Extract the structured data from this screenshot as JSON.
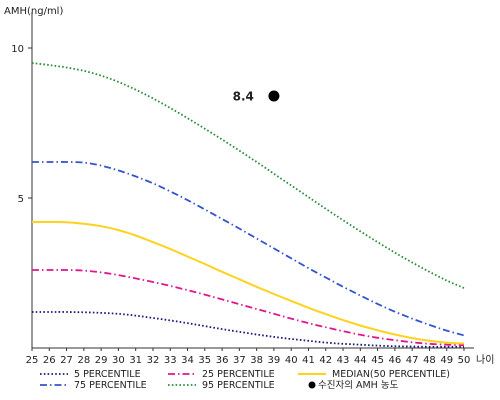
{
  "chart_data": {
    "type": "line",
    "ylabel": "AMH(ng/ml)",
    "xlabel": "나이",
    "x": [
      25,
      26,
      27,
      28,
      29,
      30,
      31,
      32,
      33,
      34,
      35,
      36,
      37,
      38,
      39,
      40,
      41,
      42,
      43,
      44,
      45,
      46,
      47,
      48,
      49,
      50
    ],
    "xlim": [
      25,
      50
    ],
    "ylim": [
      0,
      11
    ],
    "yticks": [
      5,
      10
    ],
    "series": [
      {
        "name": "5 PERCENTILE",
        "color": "#1a1a7a",
        "style": "dotted",
        "values": [
          1.2,
          1.2,
          1.2,
          1.19,
          1.17,
          1.14,
          1.08,
          1.0,
          0.92,
          0.83,
          0.73,
          0.63,
          0.54,
          0.45,
          0.37,
          0.3,
          0.24,
          0.18,
          0.14,
          0.11,
          0.08,
          0.06,
          0.05,
          0.04,
          0.04,
          0.04
        ]
      },
      {
        "name": "25 PERCENTILE",
        "color": "#e0168c",
        "style": "dash-dot",
        "values": [
          2.6,
          2.6,
          2.6,
          2.58,
          2.52,
          2.43,
          2.32,
          2.2,
          2.07,
          1.93,
          1.78,
          1.62,
          1.46,
          1.3,
          1.14,
          0.98,
          0.83,
          0.69,
          0.56,
          0.44,
          0.34,
          0.26,
          0.19,
          0.14,
          0.11,
          0.09
        ]
      },
      {
        "name": "MEDIAN(50 PERCENTILE)",
        "color": "#ffd21e",
        "style": "solid",
        "values": [
          4.2,
          4.2,
          4.19,
          4.14,
          4.06,
          3.93,
          3.75,
          3.53,
          3.3,
          3.05,
          2.8,
          2.54,
          2.29,
          2.04,
          1.8,
          1.57,
          1.34,
          1.13,
          0.93,
          0.75,
          0.59,
          0.45,
          0.33,
          0.24,
          0.18,
          0.15
        ]
      },
      {
        "name": "75 PERCENTILE",
        "color": "#3355cc",
        "style": "dash-dot",
        "values": [
          6.2,
          6.2,
          6.2,
          6.18,
          6.08,
          5.92,
          5.72,
          5.49,
          5.22,
          4.93,
          4.62,
          4.3,
          3.98,
          3.65,
          3.32,
          2.99,
          2.66,
          2.35,
          2.04,
          1.75,
          1.47,
          1.21,
          0.98,
          0.77,
          0.58,
          0.42
        ]
      },
      {
        "name": "95 PERCENTILE",
        "color": "#2a8a3a",
        "style": "dotted",
        "values": [
          9.5,
          9.43,
          9.35,
          9.24,
          9.08,
          8.87,
          8.61,
          8.32,
          8.0,
          7.66,
          7.31,
          6.95,
          6.58,
          6.2,
          5.81,
          5.42,
          5.03,
          4.64,
          4.26,
          3.89,
          3.53,
          3.18,
          2.85,
          2.54,
          2.25,
          2.0
        ]
      }
    ],
    "highlight": {
      "name": "수진자의 AMH 농도",
      "x": 39,
      "y": 8.4,
      "label": "8.4",
      "color": "#000000"
    },
    "legend_position": "bottom"
  }
}
